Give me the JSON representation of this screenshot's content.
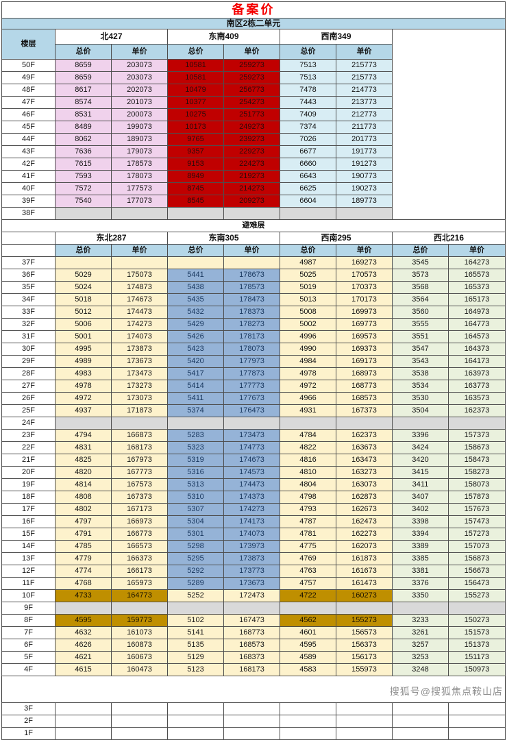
{
  "title": "备案价",
  "subtitle": "南区2栋二单元",
  "floor_col_header": "楼层",
  "price_col_headers": [
    "总价",
    "单价"
  ],
  "refuge_row_label": "避难层",
  "watermark": "搜狐号@搜狐焦点鞍山店",
  "colors": {
    "title_red": "#f40000",
    "header_blue": "#b5d7e8",
    "pink": "#f0d2ec",
    "red": "#c00000",
    "cyan": "#d8edf4",
    "cream": "#fdf2cc",
    "blue": "#95b3d7",
    "blue_text": "#17365d",
    "green": "#eaf1dd",
    "gold": "#bf8f00",
    "grey": "#d9d9d9"
  },
  "section1": {
    "units": [
      "北427",
      "东南409",
      "西南349"
    ],
    "col_styles": [
      "pink",
      "pink",
      "red",
      "red",
      "cyan",
      "cyan"
    ],
    "rows": [
      {
        "floor": "50F",
        "values": [
          "8659",
          "203073",
          "10581",
          "259273",
          "7513",
          "215773"
        ]
      },
      {
        "floor": "49F",
        "values": [
          "8659",
          "203073",
          "10581",
          "259273",
          "7513",
          "215773"
        ]
      },
      {
        "floor": "48F",
        "values": [
          "8617",
          "202073",
          "10479",
          "256773",
          "7478",
          "214773"
        ]
      },
      {
        "floor": "47F",
        "values": [
          "8574",
          "201073",
          "10377",
          "254273",
          "7443",
          "213773"
        ]
      },
      {
        "floor": "46F",
        "values": [
          "8531",
          "200073",
          "10275",
          "251773",
          "7409",
          "212773"
        ]
      },
      {
        "floor": "45F",
        "values": [
          "8489",
          "199073",
          "10173",
          "249273",
          "7374",
          "211773"
        ]
      },
      {
        "floor": "44F",
        "values": [
          "8062",
          "189073",
          "9765",
          "239273",
          "7026",
          "201773"
        ]
      },
      {
        "floor": "43F",
        "values": [
          "7636",
          "179073",
          "9357",
          "229273",
          "6677",
          "191773"
        ]
      },
      {
        "floor": "42F",
        "values": [
          "7615",
          "178573",
          "9153",
          "224273",
          "6660",
          "191273"
        ]
      },
      {
        "floor": "41F",
        "values": [
          "7593",
          "178073",
          "8949",
          "219273",
          "6643",
          "190773"
        ]
      },
      {
        "floor": "40F",
        "values": [
          "7572",
          "177573",
          "8745",
          "214273",
          "6625",
          "190273"
        ]
      },
      {
        "floor": "39F",
        "values": [
          "7540",
          "177073",
          "8545",
          "209273",
          "6604",
          "189773"
        ]
      },
      {
        "floor": "38F",
        "values": [
          "",
          "",
          "",
          "",
          "",
          ""
        ],
        "style": "grey"
      }
    ]
  },
  "section2": {
    "units": [
      "东北287",
      "东南305",
      "西南295",
      "西北216"
    ],
    "col_styles": [
      "cream",
      "cream",
      "blue",
      "blue",
      "cream",
      "cream",
      "green",
      "green"
    ],
    "rows": [
      {
        "floor": "37F",
        "values": [
          "",
          "",
          "",
          "",
          "4987",
          "169273",
          "3545",
          "164273"
        ],
        "styles": [
          "cream",
          "cream",
          "cream",
          "cream",
          "cream",
          "cream",
          "green",
          "green"
        ]
      },
      {
        "floor": "36F",
        "values": [
          "5029",
          "175073",
          "5441",
          "178673",
          "5025",
          "170573",
          "3573",
          "165573"
        ]
      },
      {
        "floor": "35F",
        "values": [
          "5024",
          "174873",
          "5438",
          "178573",
          "5019",
          "170373",
          "3568",
          "165373"
        ]
      },
      {
        "floor": "34F",
        "values": [
          "5018",
          "174673",
          "5435",
          "178473",
          "5013",
          "170173",
          "3564",
          "165173"
        ]
      },
      {
        "floor": "33F",
        "values": [
          "5012",
          "174473",
          "5432",
          "178373",
          "5008",
          "169973",
          "3560",
          "164973"
        ]
      },
      {
        "floor": "32F",
        "values": [
          "5006",
          "174273",
          "5429",
          "178273",
          "5002",
          "169773",
          "3555",
          "164773"
        ]
      },
      {
        "floor": "31F",
        "values": [
          "5001",
          "174073",
          "5426",
          "178173",
          "4996",
          "169573",
          "3551",
          "164573"
        ]
      },
      {
        "floor": "30F",
        "values": [
          "4995",
          "173873",
          "5423",
          "178073",
          "4990",
          "169373",
          "3547",
          "164373"
        ]
      },
      {
        "floor": "29F",
        "values": [
          "4989",
          "173673",
          "5420",
          "177973",
          "4984",
          "169173",
          "3543",
          "164173"
        ]
      },
      {
        "floor": "28F",
        "values": [
          "4983",
          "173473",
          "5417",
          "177873",
          "4978",
          "168973",
          "3538",
          "163973"
        ]
      },
      {
        "floor": "27F",
        "values": [
          "4978",
          "173273",
          "5414",
          "177773",
          "4972",
          "168773",
          "3534",
          "163773"
        ]
      },
      {
        "floor": "26F",
        "values": [
          "4972",
          "173073",
          "5411",
          "177673",
          "4966",
          "168573",
          "3530",
          "163573"
        ]
      },
      {
        "floor": "25F",
        "values": [
          "4937",
          "171873",
          "5374",
          "176473",
          "4931",
          "167373",
          "3504",
          "162373"
        ]
      },
      {
        "floor": "24F",
        "values": [
          "",
          "",
          "",
          "",
          "",
          "",
          "",
          ""
        ],
        "style": "grey"
      },
      {
        "floor": "23F",
        "values": [
          "4794",
          "166873",
          "5283",
          "173473",
          "4784",
          "162373",
          "3396",
          "157373"
        ]
      },
      {
        "floor": "22F",
        "values": [
          "4831",
          "168173",
          "5323",
          "174773",
          "4822",
          "163673",
          "3424",
          "158673"
        ]
      },
      {
        "floor": "21F",
        "values": [
          "4825",
          "167973",
          "5319",
          "174673",
          "4816",
          "163473",
          "3420",
          "158473"
        ]
      },
      {
        "floor": "20F",
        "values": [
          "4820",
          "167773",
          "5316",
          "174573",
          "4810",
          "163273",
          "3415",
          "158273"
        ]
      },
      {
        "floor": "19F",
        "values": [
          "4814",
          "167573",
          "5313",
          "174473",
          "4804",
          "163073",
          "3411",
          "158073"
        ]
      },
      {
        "floor": "18F",
        "values": [
          "4808",
          "167373",
          "5310",
          "174373",
          "4798",
          "162873",
          "3407",
          "157873"
        ]
      },
      {
        "floor": "17F",
        "values": [
          "4802",
          "167173",
          "5307",
          "174273",
          "4793",
          "162673",
          "3402",
          "157673"
        ]
      },
      {
        "floor": "16F",
        "values": [
          "4797",
          "166973",
          "5304",
          "174173",
          "4787",
          "162473",
          "3398",
          "157473"
        ]
      },
      {
        "floor": "15F",
        "values": [
          "4791",
          "166773",
          "5301",
          "174073",
          "4781",
          "162273",
          "3394",
          "157273"
        ]
      },
      {
        "floor": "14F",
        "values": [
          "4785",
          "166573",
          "5298",
          "173973",
          "4775",
          "162073",
          "3389",
          "157073"
        ]
      },
      {
        "floor": "13F",
        "values": [
          "4779",
          "166373",
          "5295",
          "173873",
          "4769",
          "161873",
          "3385",
          "156873"
        ]
      },
      {
        "floor": "12F",
        "values": [
          "4774",
          "166173",
          "5292",
          "173773",
          "4763",
          "161673",
          "3381",
          "156673"
        ]
      },
      {
        "floor": "11F",
        "values": [
          "4768",
          "165973",
          "5289",
          "173673",
          "4757",
          "161473",
          "3376",
          "156473"
        ]
      },
      {
        "floor": "10F",
        "values": [
          "4733",
          "164773",
          "5252",
          "172473",
          "4722",
          "160273",
          "3350",
          "155273"
        ],
        "styles": [
          "gold",
          "gold",
          "cream",
          "cream",
          "gold",
          "gold",
          "green",
          "green"
        ]
      },
      {
        "floor": "9F",
        "values": [
          "",
          "",
          "",
          "",
          "",
          "",
          "",
          ""
        ],
        "style": "grey"
      },
      {
        "floor": "8F",
        "values": [
          "4595",
          "159773",
          "5102",
          "167473",
          "4562",
          "155273",
          "3233",
          "150273"
        ],
        "styles": [
          "gold",
          "gold",
          "cream",
          "cream",
          "gold",
          "gold",
          "green",
          "green"
        ]
      },
      {
        "floor": "7F",
        "values": [
          "4632",
          "161073",
          "5141",
          "168773",
          "4601",
          "156573",
          "3261",
          "151573"
        ],
        "styles": [
          "cream",
          "cream",
          "cream",
          "cream",
          "cream",
          "cream",
          "green",
          "green"
        ]
      },
      {
        "floor": "6F",
        "values": [
          "4626",
          "160873",
          "5135",
          "168573",
          "4595",
          "156373",
          "3257",
          "151373"
        ],
        "styles": [
          "cream",
          "cream",
          "cream",
          "cream",
          "cream",
          "cream",
          "green",
          "green"
        ]
      },
      {
        "floor": "5F",
        "values": [
          "4621",
          "160673",
          "5129",
          "168373",
          "4589",
          "156173",
          "3253",
          "151173"
        ],
        "styles": [
          "cream",
          "cream",
          "cream",
          "cream",
          "cream",
          "cream",
          "green",
          "green"
        ]
      },
      {
        "floor": "4F",
        "values": [
          "4615",
          "160473",
          "5123",
          "168173",
          "4583",
          "155973",
          "3248",
          "150973"
        ],
        "styles": [
          "cream",
          "cream",
          "cream",
          "cream",
          "cream",
          "cream",
          "green",
          "green"
        ]
      },
      {
        "floor": "",
        "values": [
          "",
          "",
          "",
          "",
          "",
          "",
          "",
          ""
        ],
        "style": "void",
        "spacer": true
      },
      {
        "floor": "3F",
        "values": [
          "",
          "",
          "",
          "",
          "",
          "",
          "",
          ""
        ],
        "style": "white"
      },
      {
        "floor": "2F",
        "values": [
          "",
          "",
          "",
          "",
          "",
          "",
          "",
          ""
        ],
        "style": "white"
      },
      {
        "floor": "1F",
        "values": [
          "",
          "",
          "",
          "",
          "",
          "",
          "",
          ""
        ],
        "style": "white"
      }
    ]
  }
}
